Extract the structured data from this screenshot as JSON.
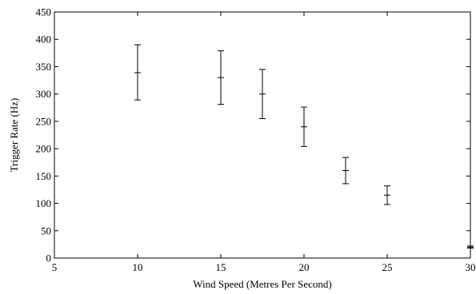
{
  "chart_data": {
    "type": "scatter",
    "title": "",
    "xlabel": "Wind Speed (Metres Per Second)",
    "ylabel": "Trigger Rate (Hz)",
    "xlim": [
      5,
      30
    ],
    "ylim": [
      0,
      450
    ],
    "x_ticks": [
      5,
      10,
      15,
      20,
      25,
      30
    ],
    "y_ticks": [
      0,
      50,
      100,
      150,
      200,
      250,
      300,
      350,
      400,
      450
    ],
    "grid": false,
    "legend": "none",
    "series": [
      {
        "marker": "plus",
        "color": "#000000",
        "points": [
          {
            "x": 10,
            "y": 339,
            "y_low": 289,
            "y_high": 390
          },
          {
            "x": 15,
            "y": 330,
            "y_low": 281,
            "y_high": 379
          },
          {
            "x": 17.5,
            "y": 300,
            "y_low": 255,
            "y_high": 345
          },
          {
            "x": 20,
            "y": 240,
            "y_low": 204,
            "y_high": 276
          },
          {
            "x": 22.5,
            "y": 160,
            "y_low": 136,
            "y_high": 184
          },
          {
            "x": 25,
            "y": 115,
            "y_low": 98,
            "y_high": 132
          },
          {
            "x": 30,
            "y": 20,
            "y_low": 18,
            "y_high": 22
          }
        ]
      }
    ]
  }
}
